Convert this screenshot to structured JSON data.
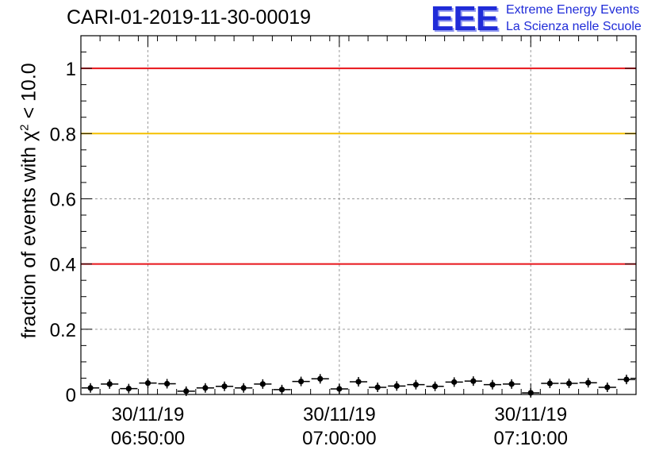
{
  "chart_data": {
    "type": "scatter",
    "title": "CARI-01-2019-11-30-00019",
    "ylabel_text": "fraction of events with χ",
    "ylabel_sup": "2",
    "ylabel_tail": " < 10.0",
    "ylim": [
      0,
      1.1
    ],
    "xlim_minutes": [
      0,
      29
    ],
    "x_tick_labels": [
      {
        "date": "30/11/19",
        "time": "06:50:00",
        "minute": 3.5
      },
      {
        "date": "30/11/19",
        "time": "07:00:00",
        "minute": 13.5
      },
      {
        "date": "30/11/19",
        "time": "07:10:00",
        "minute": 23.5
      }
    ],
    "y_ticks": [
      {
        "value": 0,
        "label": "0"
      },
      {
        "value": 0.2,
        "label": "0.2"
      },
      {
        "value": 0.4,
        "label": "0.4"
      },
      {
        "value": 0.6,
        "label": "0.6"
      },
      {
        "value": 0.8,
        "label": "0.8"
      },
      {
        "value": 1.0,
        "label": "1"
      }
    ],
    "reference_lines": [
      {
        "value": 1.0,
        "color": "#e8141a"
      },
      {
        "value": 0.8,
        "color": "#f5c000"
      },
      {
        "value": 0.4,
        "color": "#e8141a"
      }
    ],
    "grid": true,
    "points": [
      0.02,
      0.032,
      0.018,
      0.035,
      0.033,
      0.01,
      0.02,
      0.025,
      0.02,
      0.032,
      0.015,
      0.04,
      0.048,
      0.017,
      0.039,
      0.022,
      0.026,
      0.03,
      0.025,
      0.038,
      0.041,
      0.03,
      0.032,
      0.005,
      0.034,
      0.034,
      0.036,
      0.022,
      0.046
    ],
    "marker_color": "#000000"
  },
  "logo": {
    "mark": "EEE",
    "line1": "Extreme Energy Events",
    "line2": "La Scienza nelle Scuole",
    "color": "#1f2bd8"
  }
}
